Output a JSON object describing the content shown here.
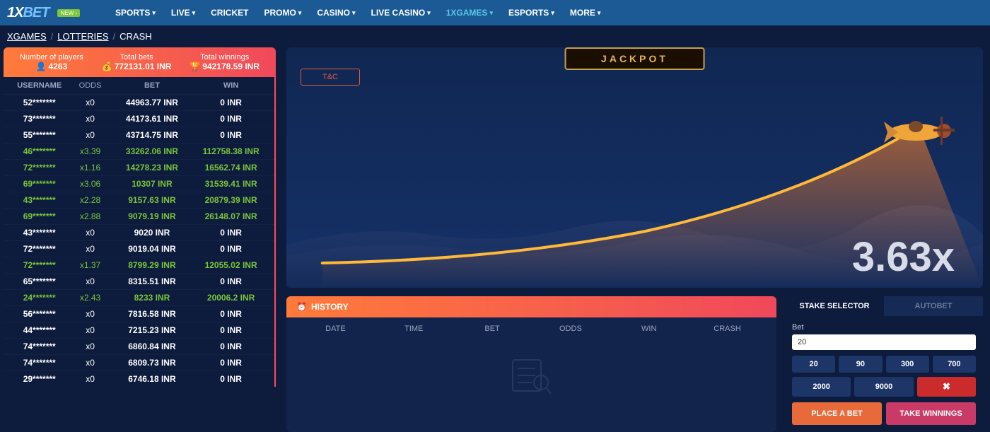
{
  "logo": {
    "part1": "1X",
    "part2": "BET",
    "badge": "NEW ›"
  },
  "nav": [
    {
      "label": "SPORTS",
      "dropdown": true,
      "active": false
    },
    {
      "label": "LIVE",
      "dropdown": true,
      "active": false
    },
    {
      "label": "CRICKET",
      "dropdown": false,
      "active": false
    },
    {
      "label": "PROMO",
      "dropdown": true,
      "active": false
    },
    {
      "label": "CASINO",
      "dropdown": true,
      "active": false
    },
    {
      "label": "LIVE CASINO",
      "dropdown": true,
      "active": false
    },
    {
      "label": "1XGAMES",
      "dropdown": true,
      "active": true
    },
    {
      "label": "ESPORTS",
      "dropdown": true,
      "active": false
    },
    {
      "label": "MORE",
      "dropdown": true,
      "active": false
    }
  ],
  "breadcrumb": {
    "a": "XGAMES",
    "b": "LOTTERIES",
    "c": "CRASH"
  },
  "stats": {
    "players": {
      "label": "Number of players",
      "value": "4263"
    },
    "bets": {
      "label": "Total bets",
      "value": "772131.01 INR"
    },
    "winnings": {
      "label": "Total winnings",
      "value": "942178.59 INR"
    }
  },
  "table": {
    "headers": {
      "user": "USERNAME",
      "odds": "ODDS",
      "bet": "BET",
      "win": "WIN"
    },
    "rows": [
      {
        "user": "52*******",
        "odds": "x0",
        "bet": "44963.77 INR",
        "win": "0 INR",
        "won": false
      },
      {
        "user": "73*******",
        "odds": "x0",
        "bet": "44173.61 INR",
        "win": "0 INR",
        "won": false
      },
      {
        "user": "55*******",
        "odds": "x0",
        "bet": "43714.75 INR",
        "win": "0 INR",
        "won": false
      },
      {
        "user": "46*******",
        "odds": "x3.39",
        "bet": "33262.06 INR",
        "win": "112758.38 INR",
        "won": true
      },
      {
        "user": "72*******",
        "odds": "x1.16",
        "bet": "14278.23 INR",
        "win": "16562.74 INR",
        "won": true
      },
      {
        "user": "69*******",
        "odds": "x3.06",
        "bet": "10307 INR",
        "win": "31539.41 INR",
        "won": true
      },
      {
        "user": "43*******",
        "odds": "x2.28",
        "bet": "9157.63 INR",
        "win": "20879.39 INR",
        "won": true
      },
      {
        "user": "69*******",
        "odds": "x2.88",
        "bet": "9079.19 INR",
        "win": "26148.07 INR",
        "won": true
      },
      {
        "user": "43*******",
        "odds": "x0",
        "bet": "9020 INR",
        "win": "0 INR",
        "won": false
      },
      {
        "user": "72*******",
        "odds": "x0",
        "bet": "9019.04 INR",
        "win": "0 INR",
        "won": false
      },
      {
        "user": "72*******",
        "odds": "x1.37",
        "bet": "8799.29 INR",
        "win": "12055.02 INR",
        "won": true
      },
      {
        "user": "65*******",
        "odds": "x0",
        "bet": "8315.51 INR",
        "win": "0 INR",
        "won": false
      },
      {
        "user": "24*******",
        "odds": "x2.43",
        "bet": "8233 INR",
        "win": "20006.2 INR",
        "won": true
      },
      {
        "user": "56*******",
        "odds": "x0",
        "bet": "7816.58 INR",
        "win": "0 INR",
        "won": false
      },
      {
        "user": "44*******",
        "odds": "x0",
        "bet": "7215.23 INR",
        "win": "0 INR",
        "won": false
      },
      {
        "user": "74*******",
        "odds": "x0",
        "bet": "6860.84 INR",
        "win": "0 INR",
        "won": false
      },
      {
        "user": "74*******",
        "odds": "x0",
        "bet": "6809.73 INR",
        "win": "0 INR",
        "won": false
      },
      {
        "user": "29*******",
        "odds": "x0",
        "bet": "6746.18 INR",
        "win": "0 INR",
        "won": false
      }
    ]
  },
  "game": {
    "jackpot_label": "JACKPOT",
    "tnc": "T&C",
    "multiplier": "3.63x",
    "curve_color": "#ffb93a",
    "curve_width": 4,
    "bg_gradient": [
      "#102752",
      "#153168"
    ],
    "plane_emoji": "✈️",
    "fill_gradient": [
      "rgba(255,120,40,0.7)",
      "rgba(255,120,40,0)"
    ]
  },
  "history": {
    "label": "HISTORY",
    "cols": {
      "date": "DATE",
      "time": "TIME",
      "bet": "BET",
      "odds": "ODDS",
      "win": "WIN",
      "crash": "CRASH"
    }
  },
  "betpanel": {
    "tabs": {
      "stake": "STAKE SELECTOR",
      "auto": "AUTOBET"
    },
    "bet_label": "Bet",
    "bet_value": "20",
    "presets1": [
      "20",
      "90",
      "300",
      "700"
    ],
    "presets2": [
      "2000",
      "9000"
    ],
    "clear_icon": "✖",
    "place": "PLACE A BET",
    "take": "TAKE WINNINGS"
  },
  "colors": {
    "topnav": "#1c5a96",
    "bg": "#0d1b3d",
    "accent_grad_a": "#ff7b3a",
    "accent_grad_b": "#f0495a",
    "win_text": "#7cc53a",
    "preset_bg": "#1e3568",
    "clear_bg": "#cc2b2b",
    "place_bg": "#e86a3a",
    "take_bg": "#c93a66"
  }
}
